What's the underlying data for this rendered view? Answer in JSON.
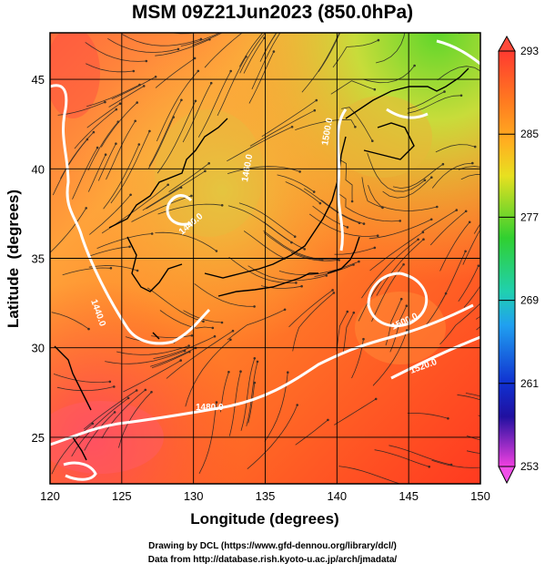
{
  "title": "MSM 09Z21Jun2023 (850.0hPa)",
  "map": {
    "xlabel": "Longitude (degrees)",
    "ylabel": "Latitude  (degrees)",
    "xticks": [
      "120",
      "125",
      "130",
      "135",
      "140",
      "145",
      "150"
    ],
    "yticks": [
      "45",
      "40",
      "35",
      "30",
      "25"
    ],
    "lon_range": [
      120,
      150
    ],
    "lat_range": [
      22.4,
      47.6
    ],
    "contour_labels": [
      "1440.0",
      "1440.0",
      "1460.0",
      "1480.0",
      "1500.0",
      "1520.0",
      "1500.0"
    ]
  },
  "colorbar": {
    "ticks": [
      "293",
      "285",
      "277",
      "269",
      "261",
      "253"
    ],
    "range": [
      253,
      293
    ]
  },
  "credits": {
    "line1": "Drawing by DCL (https://www.gfd-dennou.org/library/dcl/)",
    "line2": "Data from http://database.rish.kyoto-u.ac.jp/arch/jmadata/"
  }
}
